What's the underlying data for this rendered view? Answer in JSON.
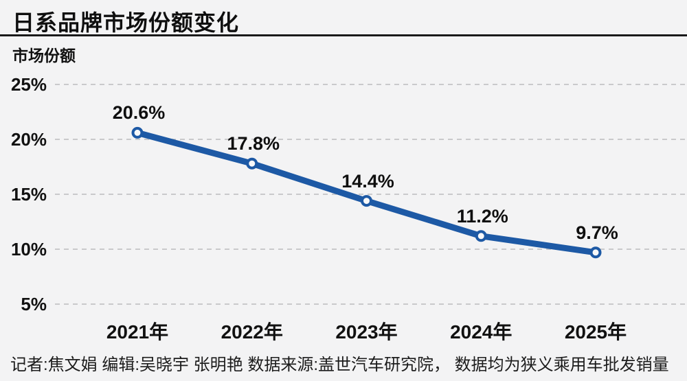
{
  "page": {
    "background_color": "#f3f3f4"
  },
  "header": {
    "title": "日系品牌市场份额变化"
  },
  "chart_data": {
    "type": "line",
    "title": "日系品牌市场份额变化",
    "xlabel": "",
    "ylabel": "市场份额",
    "categories": [
      "2021年",
      "2022年",
      "2023年",
      "2024年",
      "2025年"
    ],
    "values": [
      20.6,
      17.8,
      14.4,
      11.2,
      9.7
    ],
    "value_labels": [
      "20.6%",
      "17.8%",
      "14.4%",
      "11.2%",
      "9.7%"
    ],
    "yticks": [
      25,
      20,
      15,
      10,
      5
    ],
    "ytick_labels": [
      "25%",
      "20%",
      "15%",
      "10%",
      "5%"
    ],
    "ylim": [
      2.5,
      27.5
    ],
    "grid": true,
    "grid_style": "dashed",
    "legend": "none",
    "line_color": "#1d59a5",
    "marker_fill": "#f8f8f9",
    "grid_color": "#c9c9cb",
    "text_color": "#111111"
  },
  "footer": {
    "credits": "记者:焦文娟  编辑:吴晓宇 张明艳  数据来源:盖世汽车研究院， 数据均为狭义乘用车批发销量"
  }
}
